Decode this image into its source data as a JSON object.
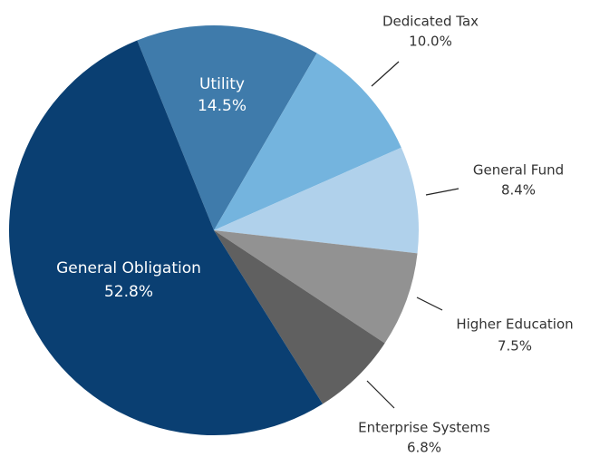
{
  "chart_data": {
    "type": "pie",
    "categories": [
      "Utility",
      "Dedicated Tax",
      "General Fund",
      "Higher Education",
      "Enterprise Systems",
      "General Obligation"
    ],
    "values": [
      14.5,
      10.0,
      8.4,
      7.5,
      6.8,
      52.8
    ],
    "value_labels": [
      "14.5%",
      "10.0%",
      "8.4%",
      "7.5%",
      "6.8%",
      "52.8%"
    ],
    "colors": [
      "#3f7bab",
      "#74b4de",
      "#b0d1eb",
      "#929292",
      "#606060",
      "#0a3f72"
    ]
  }
}
